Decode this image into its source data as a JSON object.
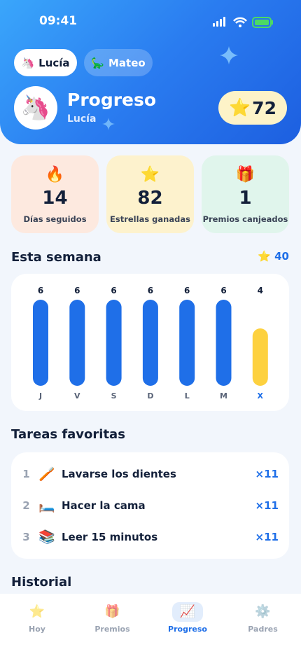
{
  "status_bar": {
    "time": "09:41"
  },
  "profiles": [
    {
      "emoji": "🦄",
      "name": "Lucía",
      "active": true
    },
    {
      "emoji": "🦕",
      "name": "Mateo",
      "active": false
    }
  ],
  "header": {
    "avatar": "🦄",
    "title": "Progreso",
    "subtitle": "Lucía",
    "star_icon": "⭐",
    "stars": 72
  },
  "stats": [
    {
      "icon": "🔥",
      "value": 14,
      "label": "Días seguidos",
      "color": "#fde9df"
    },
    {
      "icon": "⭐",
      "value": 82,
      "label": "Estrellas ganadas",
      "color": "#fdf2cd"
    },
    {
      "icon": "🎁",
      "value": 1,
      "label": "Premios canjeados",
      "color": "#e0f5ec"
    }
  ],
  "week": {
    "title": "Esta semana",
    "total_icon": "⭐",
    "total": 40,
    "days": [
      "J",
      "V",
      "S",
      "D",
      "L",
      "M",
      "X"
    ],
    "values": [
      6,
      6,
      6,
      6,
      6,
      6,
      4
    ],
    "colors": [
      "#1f6fe8",
      "#1f6fe8",
      "#1f6fe8",
      "#1f6fe8",
      "#1f6fe8",
      "#1f6fe8",
      "#fdd13f"
    ]
  },
  "favorites": {
    "title": "Tareas favoritas",
    "items": [
      {
        "rank": 1,
        "emoji": "🪥",
        "name": "Lavarse los dientes",
        "count": "×11"
      },
      {
        "rank": 2,
        "emoji": "🛏️",
        "name": "Hacer la cama",
        "count": "×11"
      },
      {
        "rank": 3,
        "emoji": "📚",
        "name": "Leer 15 minutos",
        "count": "×11"
      }
    ]
  },
  "history": {
    "title": "Historial"
  },
  "nav": [
    {
      "icon": "⭐",
      "label": "Hoy",
      "active": false
    },
    {
      "icon": "🎁",
      "label": "Premios",
      "active": false
    },
    {
      "icon": "📈",
      "label": "Progreso",
      "active": true
    },
    {
      "icon": "⚙️",
      "label": "Padres",
      "active": false
    }
  ]
}
